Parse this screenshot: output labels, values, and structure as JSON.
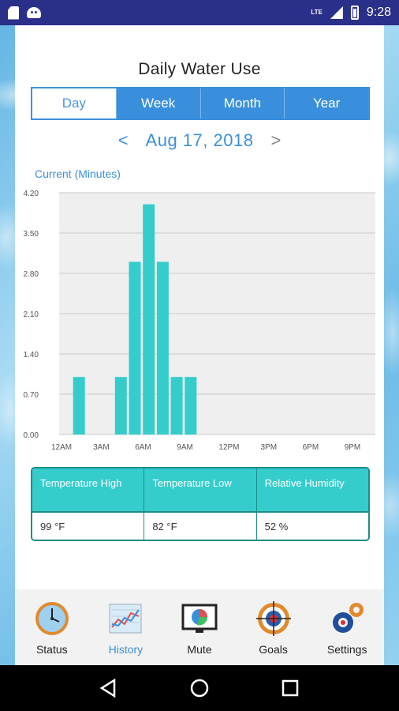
{
  "status_bar": {
    "network": "LTE",
    "battery_level": "9",
    "time": "9:28"
  },
  "page": {
    "title": "Daily Water Use"
  },
  "range_tabs": [
    {
      "label": "Day",
      "active": true
    },
    {
      "label": "Week",
      "active": false
    },
    {
      "label": "Month",
      "active": false
    },
    {
      "label": "Year",
      "active": false
    }
  ],
  "date_nav": {
    "prev": "<",
    "date": "Aug 17, 2018",
    "next": ">"
  },
  "chart_label": "Current (Minutes)",
  "chart_data": {
    "type": "bar",
    "title": "",
    "xlabel": "",
    "ylabel": "",
    "color": "#35cccc",
    "ylim": [
      0,
      4.2
    ],
    "yticks": [
      "0.00",
      "0.70",
      "1.40",
      "2.10",
      "2.80",
      "3.50",
      "4.20"
    ],
    "xticks": [
      "12AM",
      "3AM",
      "6AM",
      "9AM",
      "12PM",
      "3PM",
      "6PM",
      "9PM"
    ],
    "categories": [
      "12AM",
      "1AM",
      "2AM",
      "3AM",
      "4AM",
      "5AM",
      "6AM",
      "7AM",
      "8AM",
      "9AM",
      "10AM",
      "11AM",
      "12PM",
      "1PM",
      "2PM",
      "3PM",
      "4PM",
      "5PM",
      "6PM",
      "7PM",
      "8PM",
      "9PM",
      "10PM",
      "11PM"
    ],
    "values": [
      0,
      1,
      0,
      0,
      1,
      3,
      4,
      3,
      1,
      1,
      0,
      0,
      0,
      0,
      0,
      0,
      0,
      0,
      0,
      0,
      0,
      0,
      0,
      0
    ],
    "grid": true
  },
  "weather": {
    "headers": [
      "Temperature High",
      "Temperature Low",
      "Relative Humidity"
    ],
    "values": [
      "99 °F",
      "82 °F",
      "52 %"
    ]
  },
  "bottom_nav": [
    {
      "label": "Status",
      "icon": "clock-icon",
      "active": false
    },
    {
      "label": "History",
      "icon": "history-chart-icon",
      "active": true
    },
    {
      "label": "Mute",
      "icon": "mute-monitor-icon",
      "active": false
    },
    {
      "label": "Goals",
      "icon": "target-icon",
      "active": false
    },
    {
      "label": "Settings",
      "icon": "gears-icon",
      "active": false
    }
  ],
  "colors": {
    "accent": "#3a8fdc",
    "bar": "#35cccc",
    "status_bar": "#2a2f8a",
    "table_border": "#1e8c8a"
  }
}
